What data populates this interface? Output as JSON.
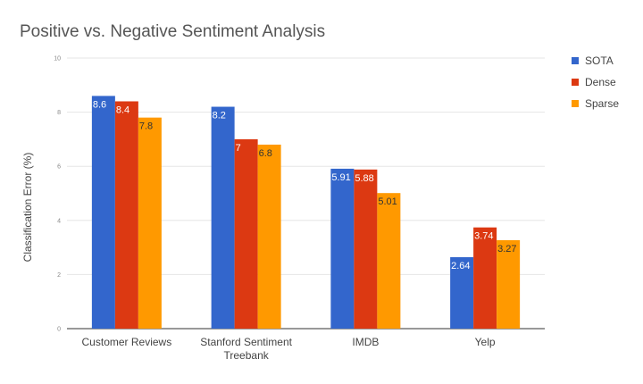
{
  "chart_data": {
    "type": "bar",
    "title": "Positive vs. Negative Sentiment Analysis",
    "xlabel": "",
    "ylabel": "Classification Error (%)",
    "ylim": [
      0,
      10
    ],
    "yticks": [
      "0",
      "2",
      "4",
      "6",
      "8",
      "10"
    ],
    "grid": true,
    "legend_position": "right",
    "categories": [
      [
        "Customer Reviews"
      ],
      [
        "Stanford Sentiment",
        "Treebank"
      ],
      [
        "IMDB"
      ],
      [
        "Yelp"
      ]
    ],
    "series": [
      {
        "name": "SOTA",
        "color": "#3366cc",
        "label_color": "#ffffff",
        "values": [
          8.6,
          8.2,
          5.91,
          2.64
        ],
        "labels": [
          "8.6",
          "8.2",
          "5.91",
          "2.64"
        ]
      },
      {
        "name": "Dense",
        "color": "#dc3912",
        "label_color": "#ffffff",
        "values": [
          8.4,
          7,
          5.88,
          3.74
        ],
        "labels": [
          "8.4",
          "7",
          "5.88",
          "3.74"
        ]
      },
      {
        "name": "Sparse",
        "color": "#ff9900",
        "label_color": "#333333",
        "values": [
          7.8,
          6.8,
          5.01,
          3.27
        ],
        "labels": [
          "7.8",
          "6.8",
          "5.01",
          "3.27"
        ]
      }
    ]
  }
}
